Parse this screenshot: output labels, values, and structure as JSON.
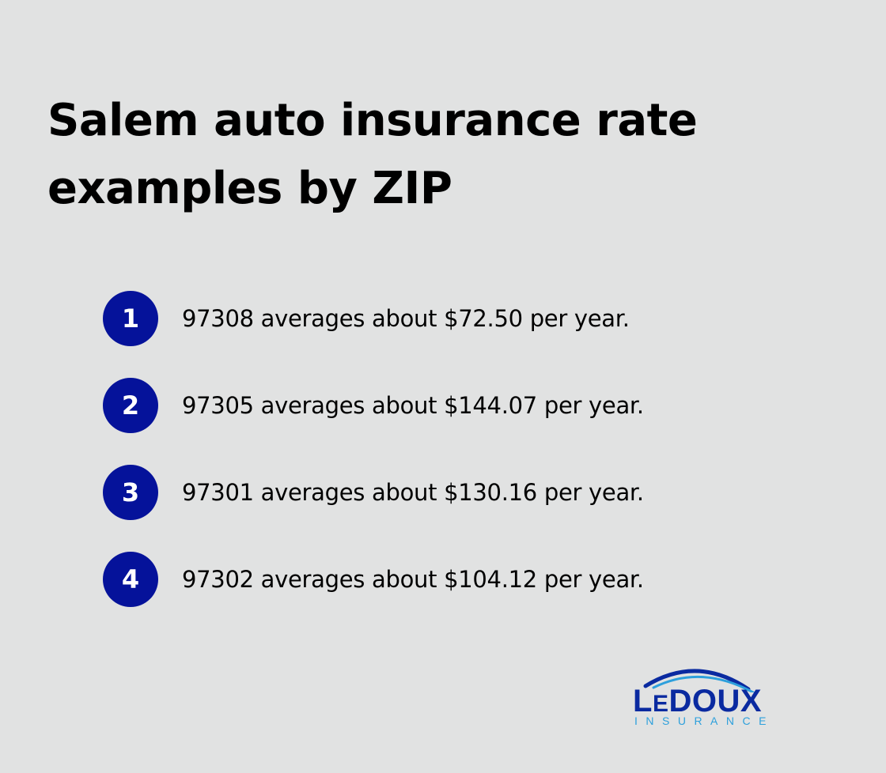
{
  "title": "Salem auto insurance rate examples by ZIP",
  "items": [
    {
      "number": "1",
      "text": "97308 averages about $72.50 per year."
    },
    {
      "number": "2",
      "text": "97305 averages about $144.07 per year."
    },
    {
      "number": "3",
      "text": "97301 averages about $130.16 per year."
    },
    {
      "number": "4",
      "text": "97302 averages about $104.12 per year."
    }
  ],
  "logo": {
    "name": "LeDoux",
    "tagline": "INSURANCE",
    "primary_color": "#0a2aa0",
    "accent_color": "#2da0dc"
  },
  "colors": {
    "background": "#e1e2e2",
    "badge": "#05129a",
    "text": "#000000"
  }
}
